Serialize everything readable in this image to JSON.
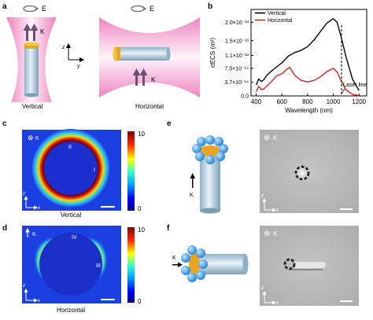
{
  "panels": {
    "a": {
      "label": "a",
      "field_label": "E",
      "k_label": "K",
      "axis_z": "z",
      "axis_y": "y",
      "caption_vertical": "Vertical",
      "caption_horizontal": "Horizontal"
    },
    "b": {
      "label": "b"
    },
    "c": {
      "label": "c",
      "caption": "Vertical",
      "k_label": "K",
      "ring_I": "I",
      "ring_II": "II",
      "axis_y": "y",
      "axis_x": "x",
      "cbar_max": "10",
      "cbar_min": "0"
    },
    "d": {
      "label": "d",
      "caption": "Horizontal",
      "k_label": "K",
      "ring_III": "III",
      "ring_IV": "IV",
      "axis_z": "z",
      "axis_x": "x",
      "cbar_max": "10",
      "cbar_min": "0"
    },
    "e": {
      "label": "e",
      "k_label": "K",
      "k_circle_label": "K",
      "axis_y": "y",
      "axis_x": "x"
    },
    "f": {
      "label": "f",
      "k_label": "K",
      "k_circle_label": "K",
      "axis_z": "z",
      "axis_x": "x"
    }
  },
  "chart_data": {
    "type": "line",
    "xlabel": "Wavelength (nm)",
    "ylabel": "σECS (m²)",
    "xlim": [
      360,
      1260
    ],
    "ylim": [
      0,
      2.35e-13
    ],
    "x_ticks": [
      400,
      600,
      800,
      1000,
      1200
    ],
    "y_ticks": [
      {
        "value": 0,
        "label": "0.0"
      },
      {
        "value": 3.7e-14,
        "label": "3.7×10⁻¹⁴"
      },
      {
        "value": 7.5e-14,
        "label": "7.5×10⁻¹⁴"
      },
      {
        "value": 1.1e-13,
        "label": "1.1×10⁻¹³"
      },
      {
        "value": 1.5e-13,
        "label": "1.5×10⁻¹³"
      },
      {
        "value": 2e-13,
        "label": "2.0×10⁻¹³"
      }
    ],
    "legend_position": "top-left",
    "annotation": {
      "text": "Laser line",
      "x": 1064
    },
    "series": [
      {
        "name": "Vertical",
        "color": "#000000",
        "x": [
          400,
          420,
          440,
          460,
          480,
          520,
          560,
          600,
          650,
          700,
          750,
          800,
          850,
          900,
          950,
          1000,
          1030,
          1060,
          1100,
          1150,
          1200
        ],
        "y": [
          3e-14,
          4.6e-14,
          3.9e-14,
          4.4e-14,
          5.5e-14,
          6.8e-14,
          7.9e-14,
          9e-14,
          1.08e-13,
          1.18e-13,
          1.24e-13,
          1.34e-13,
          1.52e-13,
          1.75e-13,
          1.98e-13,
          2.1e-13,
          2e-13,
          1.62e-13,
          1.05e-13,
          4.5e-14,
          1.5e-14
        ]
      },
      {
        "name": "Horizontal",
        "color": "#d62020",
        "x": [
          400,
          420,
          440,
          460,
          480,
          520,
          560,
          600,
          630,
          660,
          700,
          750,
          800,
          850,
          900,
          950,
          1000,
          1030,
          1060,
          1100,
          1150,
          1200
        ],
        "y": [
          1.2e-14,
          2.6e-14,
          1.7e-14,
          1.9e-14,
          2.6e-14,
          3.9e-14,
          5.5e-14,
          6e-14,
          7e-14,
          7.8e-14,
          5.6e-14,
          4.2e-14,
          3.8e-14,
          4.2e-14,
          5.2e-14,
          6.6e-14,
          7.5e-14,
          6.5e-14,
          4.2e-14,
          1.6e-14,
          4e-15,
          1e-15
        ]
      }
    ]
  }
}
